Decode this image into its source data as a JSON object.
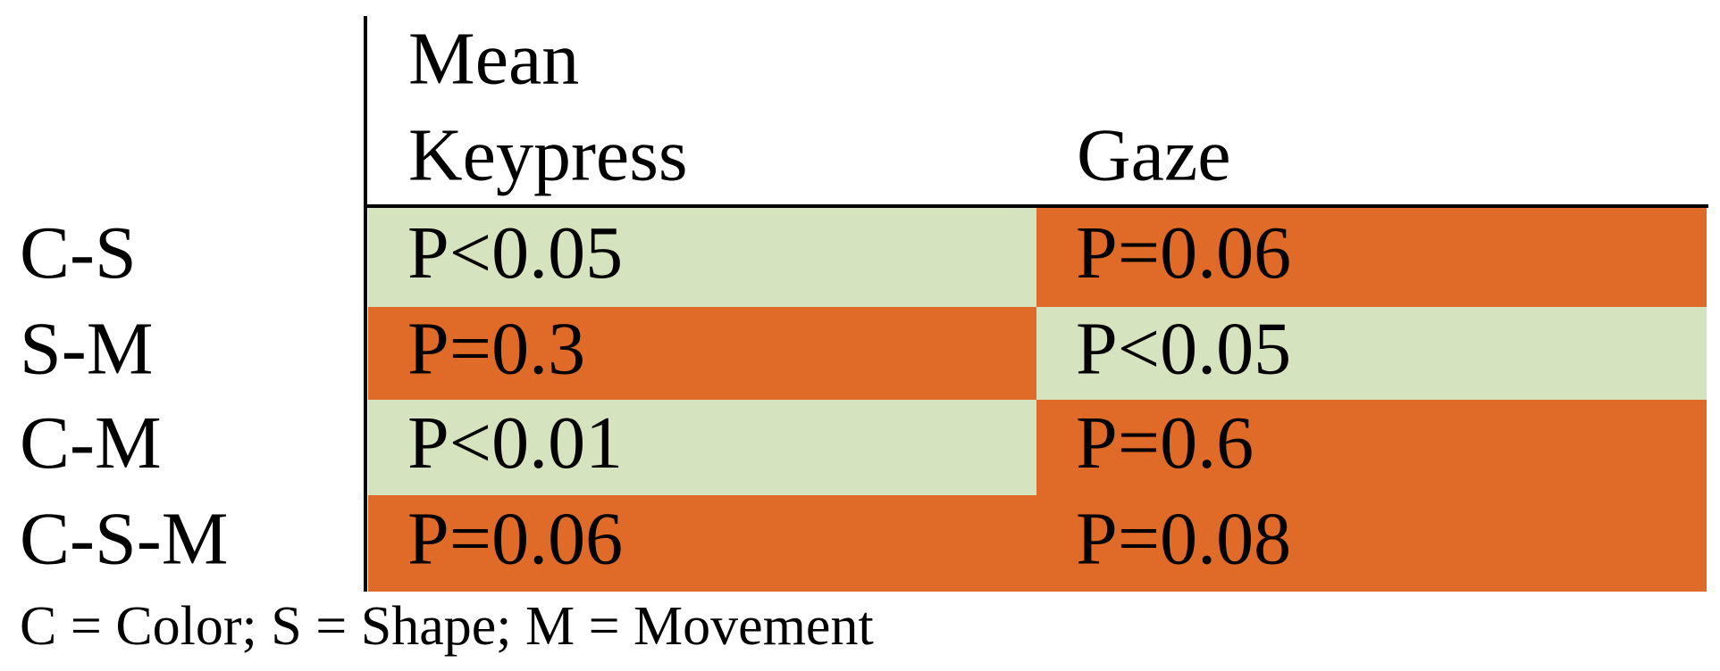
{
  "table": {
    "title": "Mean",
    "columns": [
      "Keypress",
      "Gaze"
    ],
    "rows": [
      {
        "label": "C-S",
        "cells": [
          {
            "text": "P<0.05",
            "fill": "#d5e3be"
          },
          {
            "text": "P=0.06",
            "fill": "#e06a28"
          }
        ]
      },
      {
        "label": "S-M",
        "cells": [
          {
            "text": "P=0.3",
            "fill": "#e06a28"
          },
          {
            "text": "P<0.05",
            "fill": "#d5e3be"
          }
        ]
      },
      {
        "label": "C-M",
        "cells": [
          {
            "text": "P<0.01",
            "fill": "#d5e3be"
          },
          {
            "text": "P=0.6",
            "fill": "#e06a28"
          }
        ]
      },
      {
        "label": "C-S-M",
        "cells": [
          {
            "text": "P=0.06",
            "fill": "#e06a28"
          },
          {
            "text": "P=0.08",
            "fill": "#e06a28"
          }
        ]
      }
    ],
    "footnote": "C = Color; S = Shape; M = Movement"
  }
}
